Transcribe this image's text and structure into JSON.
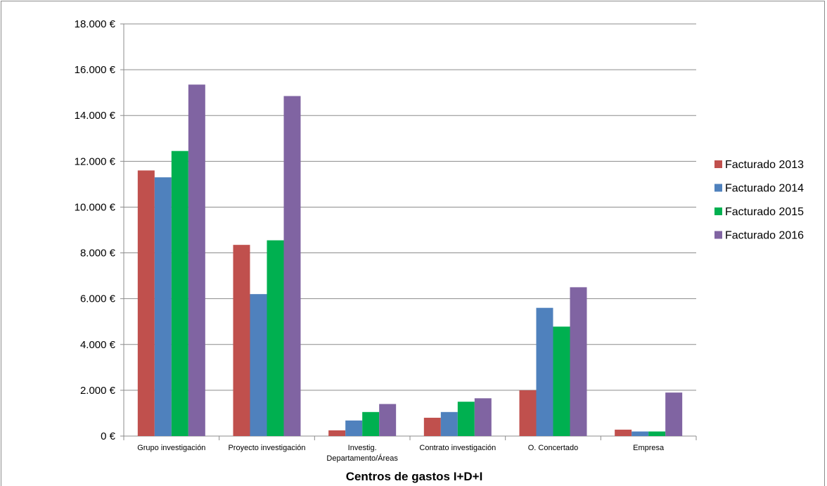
{
  "chart_data": {
    "type": "bar",
    "title": "",
    "xlabel": "Centros de gastos I+D+I",
    "ylabel": "",
    "ylim": [
      0,
      18000
    ],
    "y_ticks": [
      0,
      2000,
      4000,
      6000,
      8000,
      10000,
      12000,
      14000,
      16000,
      18000
    ],
    "y_tick_labels": [
      "0 €",
      "2.000 €",
      "4.000 €",
      "6.000 €",
      "8.000 €",
      "10.000 €",
      "12.000 €",
      "14.000 €",
      "16.000 €",
      "18.000 €"
    ],
    "grid": true,
    "legend_position": "right",
    "categories": [
      [
        "Grupo investigación"
      ],
      [
        "Proyecto investigación"
      ],
      [
        "Investig.",
        "Departamento/Áreas"
      ],
      [
        "Contrato investigación"
      ],
      [
        "O. Concertado"
      ],
      [
        "Empresa"
      ]
    ],
    "series": [
      {
        "name": "Facturado 2013",
        "color": "#c0504d",
        "values": [
          11600,
          8350,
          250,
          800,
          2000,
          280
        ]
      },
      {
        "name": "Facturado 2014",
        "color": "#4f81bd",
        "values": [
          11300,
          6200,
          680,
          1050,
          5600,
          200
        ]
      },
      {
        "name": "Facturado 2015",
        "color": "#00b050",
        "values": [
          12450,
          8550,
          1050,
          1500,
          4780,
          200
        ]
      },
      {
        "name": "Facturado 2016",
        "color": "#8064a2",
        "values": [
          15350,
          14850,
          1400,
          1650,
          6500,
          1900
        ]
      }
    ]
  }
}
